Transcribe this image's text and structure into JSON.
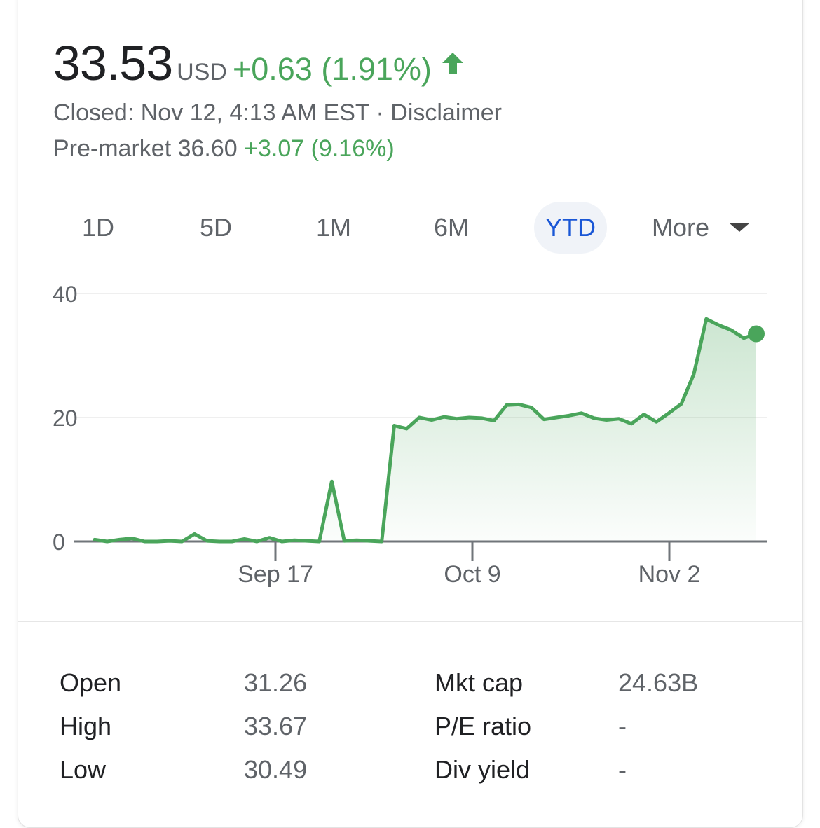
{
  "quote": {
    "price": "33.53",
    "currency": "USD",
    "change": "+0.63 (1.91%)",
    "closed_text": "Closed: Nov 12, 4:13 AM EST · Disclaimer",
    "premarket_label": "Pre-market 36.60",
    "premarket_change": "+3.07 (9.16%)"
  },
  "colors": {
    "positive": "#4aa55b",
    "active_tab": "#1a57d6"
  },
  "icons": {
    "change_arrow": "arrow-up-icon",
    "more_caret": "triangle-down-icon"
  },
  "tabs": [
    {
      "label": "1D"
    },
    {
      "label": "5D"
    },
    {
      "label": "1M"
    },
    {
      "label": "6M"
    },
    {
      "label": "YTD",
      "active": true
    },
    {
      "label": "More"
    }
  ],
  "chart_data": {
    "type": "area",
    "ylim": [
      0,
      40
    ],
    "yticks": [
      0,
      20,
      40
    ],
    "xticks": [
      "Sep 17",
      "Oct 9",
      "Nov 2"
    ],
    "grid": true,
    "series": [
      {
        "values": [
          0.3,
          0.0,
          0.3,
          0.5,
          0.0,
          0.0,
          0.1,
          0.0,
          1.2,
          0.1,
          0.0,
          0.0,
          0.4,
          0.0,
          0.6,
          0.0,
          0.2,
          0.1,
          0.0,
          9.7,
          0.1,
          0.2,
          0.1,
          0.0,
          18.7,
          18.2,
          20.0,
          19.6,
          20.1,
          19.8,
          20.0,
          19.9,
          19.5,
          22.0,
          22.1,
          21.6,
          19.7,
          20.0,
          20.3,
          20.7,
          19.9,
          19.6,
          19.8,
          19.0,
          20.5,
          19.3,
          20.7,
          22.2,
          27.0,
          35.9,
          34.9,
          34.1,
          32.8,
          33.5
        ]
      }
    ]
  },
  "stats": [
    {
      "label": "Open",
      "value": "31.26"
    },
    {
      "label": "High",
      "value": "33.67"
    },
    {
      "label": "Low",
      "value": "30.49"
    },
    {
      "label": "Mkt cap",
      "value": "24.63B"
    },
    {
      "label": "P/E ratio",
      "value": "-"
    },
    {
      "label": "Div yield",
      "value": "-"
    }
  ]
}
